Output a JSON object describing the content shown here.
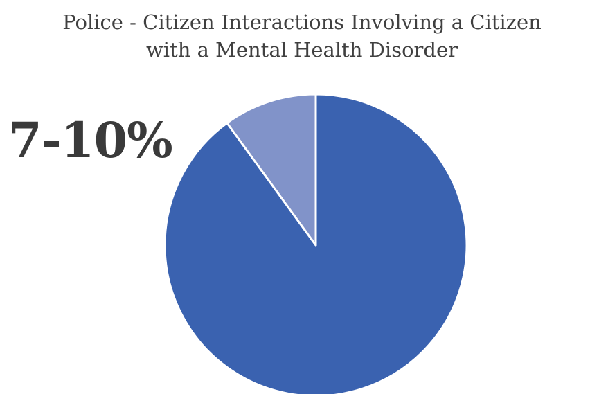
{
  "chart_data": {
    "type": "pie",
    "title": "Police - Citizen Interactions Involving a Citizen with a Mental Health Disorder",
    "title_lines": [
      "Police - Citizen Interactions Involving a Citizen",
      "with a Mental Health Disorder"
    ],
    "slices": [
      {
        "value": 90,
        "color": "#3a62b0"
      },
      {
        "value": 10,
        "color": "#8193c9"
      }
    ],
    "callout_label": "7-10%",
    "start_angle_deg": 0,
    "slice_border_color": "#ffffff",
    "legend": "none"
  }
}
